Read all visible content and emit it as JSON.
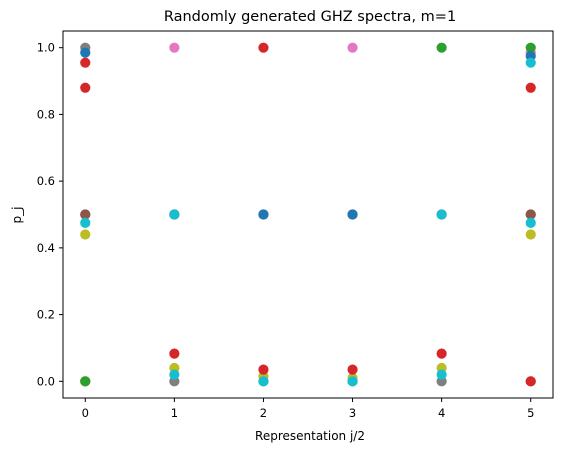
{
  "chart_data": {
    "type": "scatter",
    "title": "Randomly generated GHZ spectra, m=1",
    "xlabel": "Representation j/2",
    "ylabel": "p_j",
    "xlim": [
      -0.25,
      5.25
    ],
    "ylim": [
      -0.05,
      1.05
    ],
    "xticks": [
      0,
      1,
      2,
      3,
      4,
      5
    ],
    "yticks": [
      0.0,
      0.2,
      0.4,
      0.6,
      0.8,
      1.0
    ],
    "xtick_labels": [
      "0",
      "1",
      "2",
      "3",
      "4",
      "5"
    ],
    "ytick_labels": [
      "0.0",
      "0.2",
      "0.4",
      "0.6",
      "0.8",
      "1.0"
    ],
    "grid": false,
    "legend": "none",
    "series": [
      {
        "color": "#7f7f7f",
        "points": [
          [
            0,
            1.0
          ],
          [
            0,
            0.5
          ],
          [
            1,
            0.0
          ],
          [
            1,
            0.5
          ],
          [
            2,
            0.0
          ],
          [
            3,
            0.0
          ],
          [
            4,
            0.0
          ],
          [
            5,
            0.5
          ],
          [
            5,
            0.0
          ]
        ]
      },
      {
        "color": "#8c564b",
        "points": [
          [
            0,
            0.5
          ],
          [
            1,
            0.5
          ],
          [
            2,
            0.5
          ],
          [
            3,
            0.5
          ],
          [
            4,
            0.5
          ],
          [
            5,
            0.5
          ]
        ]
      },
      {
        "color": "#bcbd22",
        "points": [
          [
            0,
            0.44
          ],
          [
            1,
            0.04
          ],
          [
            2,
            0.015
          ],
          [
            3,
            0.01
          ],
          [
            4,
            0.04
          ],
          [
            5,
            0.44
          ]
        ]
      },
      {
        "color": "#d62728",
        "points": [
          [
            0,
            0.955
          ],
          [
            0,
            0.88
          ],
          [
            0,
            0.0
          ],
          [
            1,
            0.083
          ],
          [
            2,
            1.0
          ],
          [
            2,
            0.035
          ],
          [
            3,
            0.035
          ],
          [
            4,
            0.083
          ],
          [
            5,
            0.88
          ],
          [
            5,
            0.0
          ]
        ]
      },
      {
        "color": "#e377c2",
        "points": [
          [
            1,
            1.0
          ],
          [
            3,
            1.0
          ],
          [
            5,
            0.985
          ]
        ]
      },
      {
        "color": "#2ca02c",
        "points": [
          [
            0,
            0.0
          ],
          [
            4,
            1.0
          ],
          [
            5,
            1.0
          ]
        ]
      },
      {
        "color": "#1f77b4",
        "points": [
          [
            0,
            0.985
          ],
          [
            2,
            0.5
          ],
          [
            3,
            0.5
          ],
          [
            5,
            0.975
          ]
        ]
      },
      {
        "color": "#17becf",
        "points": [
          [
            0,
            0.475
          ],
          [
            1,
            0.5
          ],
          [
            1,
            0.02
          ],
          [
            2,
            0.0
          ],
          [
            3,
            0.0
          ],
          [
            4,
            0.5
          ],
          [
            4,
            0.02
          ],
          [
            5,
            0.955
          ],
          [
            5,
            0.475
          ]
        ]
      }
    ]
  }
}
